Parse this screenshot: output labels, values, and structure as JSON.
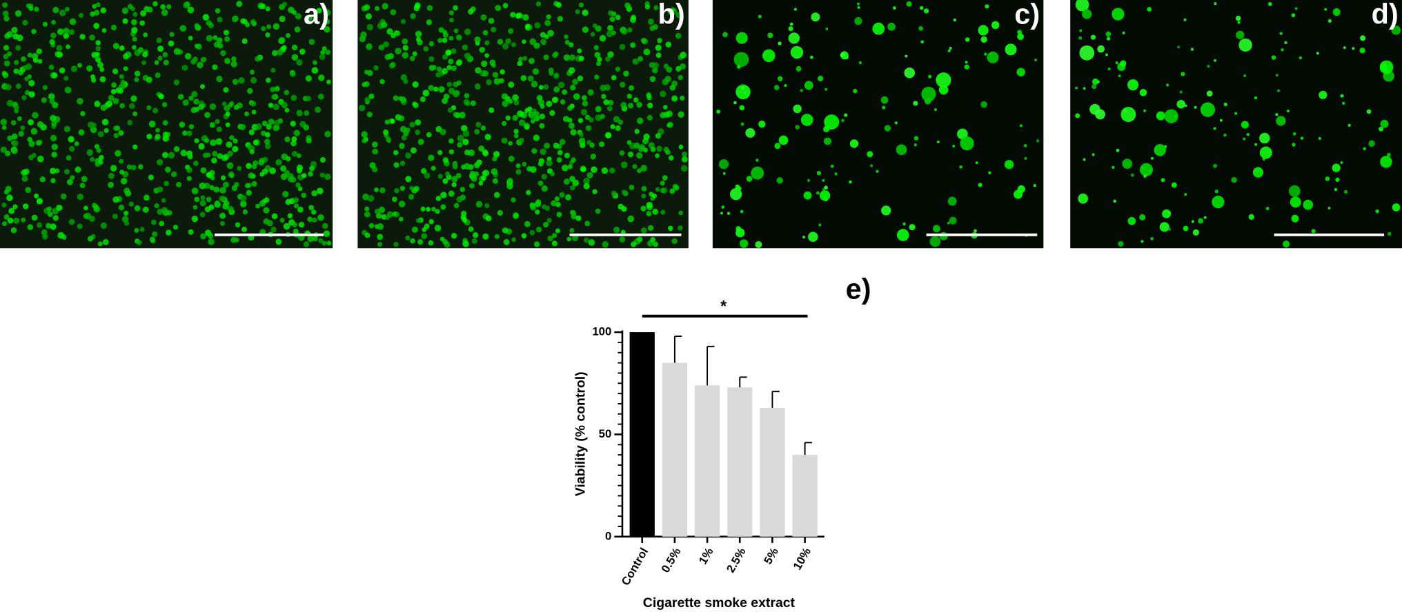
{
  "panels": [
    {
      "label": "a)"
    },
    {
      "label": "b)"
    },
    {
      "label": "c)"
    },
    {
      "label": "d)"
    }
  ],
  "chart_data": {
    "type": "bar",
    "panel_label": "e)",
    "categories": [
      "Control",
      "0.5%",
      "1%",
      "2.5%",
      "5%",
      "10%"
    ],
    "values": [
      100,
      85,
      74,
      73,
      63,
      40
    ],
    "errors": [
      0,
      13,
      19,
      5,
      8,
      6
    ],
    "colors": [
      "#000000",
      "#d9d9d9",
      "#d9d9d9",
      "#d9d9d9",
      "#d9d9d9",
      "#d9d9d9"
    ],
    "ylim": [
      0,
      100
    ],
    "yticks": [
      0,
      50,
      100
    ],
    "yminor_ticks": [
      5,
      10,
      15,
      20,
      25,
      30,
      35,
      40,
      45,
      55,
      60,
      65,
      70,
      75,
      80,
      85,
      90,
      95
    ],
    "ylabel": "Viability (% control)",
    "xlabel": "Cigarette smoke extract",
    "annotation": {
      "text": "*",
      "span": [
        0,
        5
      ]
    }
  }
}
